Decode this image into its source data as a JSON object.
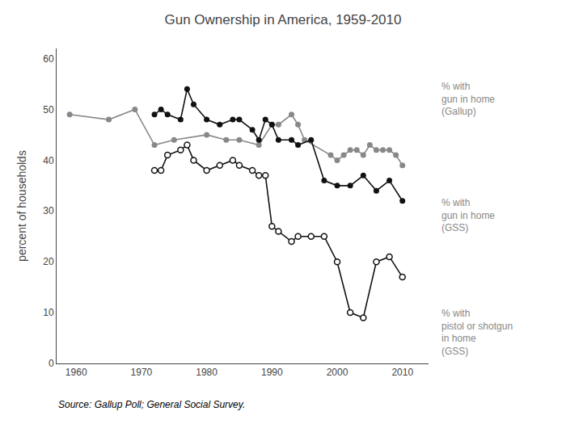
{
  "chart_data": {
    "type": "line",
    "title": "Gun Ownership in America, 1959-2010",
    "y_label": "percent of households",
    "source": "Source: Gallup Poll; General Social Survey.",
    "xlim": [
      1957,
      2014
    ],
    "ylim": [
      0,
      62
    ],
    "xticks": [
      1960,
      1970,
      1980,
      1990,
      2000,
      2010
    ],
    "yticks": [
      0,
      10,
      20,
      30,
      40,
      50,
      60
    ],
    "grid": false,
    "series": [
      {
        "color": "#888888",
        "marker": "filled",
        "x": [
          1959,
          1965,
          1969,
          1972,
          1975,
          1980,
          1983,
          1985,
          1988,
          1990,
          1991,
          1993,
          1994,
          1995,
          1999,
          2000,
          2001,
          2002,
          2003,
          2004,
          2005,
          2006,
          2007,
          2008,
          2009,
          2010
        ],
        "values": [
          49,
          48,
          50,
          43,
          44,
          45,
          44,
          44,
          43,
          47,
          47,
          49,
          47,
          44,
          41,
          40,
          41,
          42,
          42,
          41,
          43,
          42,
          42,
          42,
          41,
          39
        ]
      },
      {
        "color": "#111111",
        "marker": "filled",
        "x": [
          1972,
          1973,
          1974,
          1976,
          1977,
          1978,
          1980,
          1982,
          1984,
          1985,
          1987,
          1988,
          1989,
          1990,
          1991,
          1993,
          1994,
          1996,
          1998,
          2000,
          2002,
          2004,
          2006,
          2008,
          2010
        ],
        "values": [
          49,
          50,
          49,
          48,
          54,
          51,
          48,
          47,
          48,
          48,
          46,
          44,
          48,
          47,
          44,
          44,
          43,
          44,
          36,
          35,
          35,
          37,
          34,
          36,
          32
        ]
      },
      {
        "color": "#111111",
        "marker": "open",
        "x": [
          1972,
          1973,
          1974,
          1976,
          1977,
          1978,
          1980,
          1982,
          1984,
          1985,
          1987,
          1988,
          1989,
          1990,
          1991,
          1993,
          1994,
          1996,
          1998,
          2000,
          2002,
          2004,
          2006,
          2008,
          2010
        ],
        "values": [
          38,
          38,
          41,
          42,
          43,
          40,
          38,
          39,
          40,
          39,
          38,
          37,
          37,
          27,
          26,
          24,
          25,
          25,
          25,
          20,
          10,
          9,
          20,
          21,
          17
        ]
      }
    ],
    "annotations": [
      {
        "text": "% with\ngun in home\n(Gallup)",
        "color": "#888888"
      },
      {
        "text": "% with\ngun in home\n(GSS)",
        "color": "#888888"
      },
      {
        "text": "% with\npistol or shotgun\nin home\n(GSS)",
        "color": "#888888"
      }
    ]
  }
}
